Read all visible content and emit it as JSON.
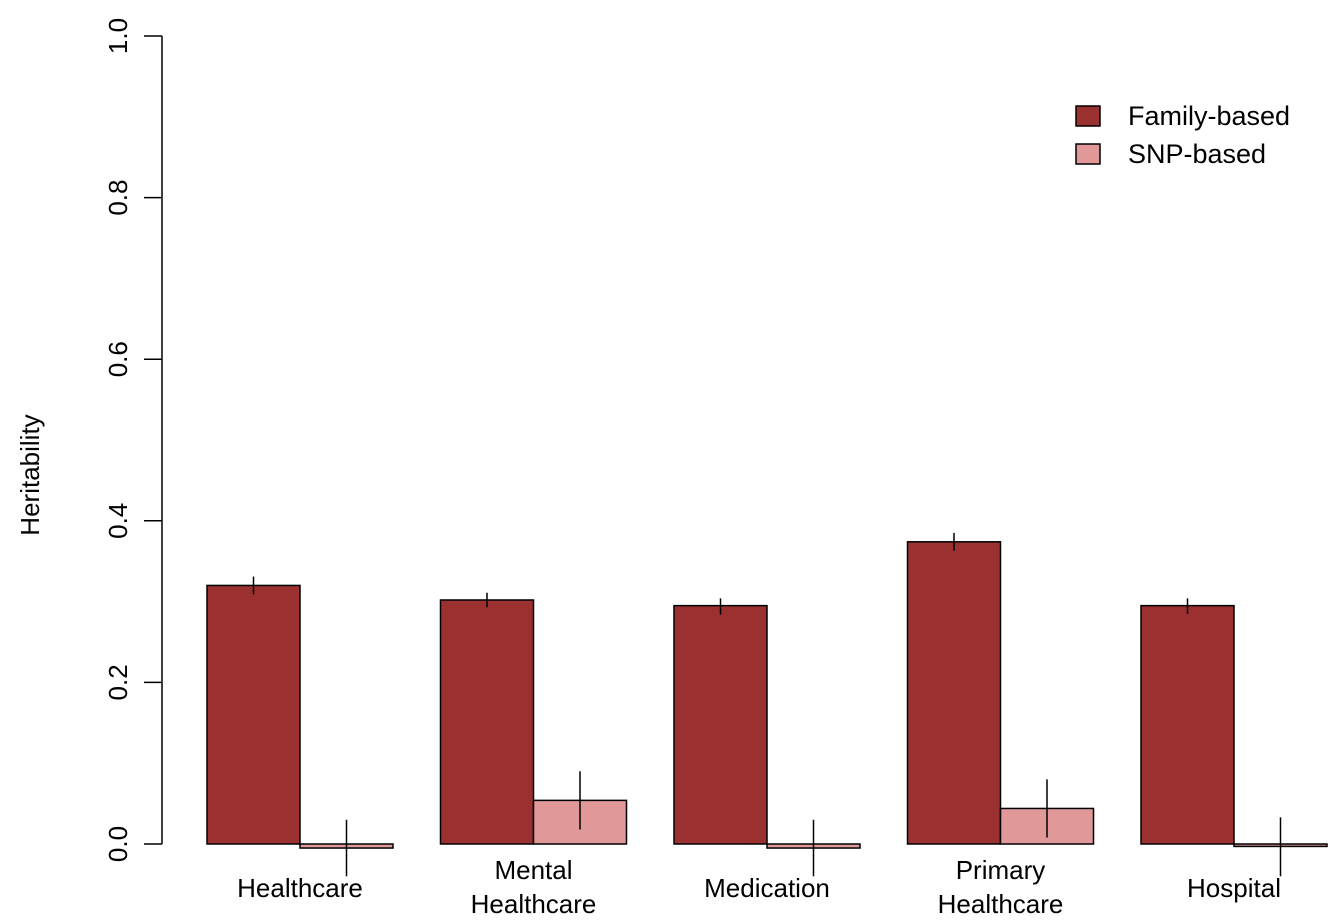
{
  "chart_data": {
    "type": "bar",
    "title": "",
    "xlabel": "",
    "ylabel": "Heritability",
    "ylim": [
      0,
      1
    ],
    "yticks": [
      "0.0",
      "0.2",
      "0.4",
      "0.6",
      "0.8",
      "1.0"
    ],
    "categories": [
      [
        "Healthcare"
      ],
      [
        "Mental",
        "Healthcare"
      ],
      [
        "Medication"
      ],
      [
        "Primary",
        "Healthcare"
      ],
      [
        "Hospital"
      ]
    ],
    "series": [
      {
        "name": "Family-based",
        "color": "#9b3030",
        "values": [
          0.32,
          0.302,
          0.295,
          0.374,
          0.295
        ],
        "error_low": [
          0.309,
          0.293,
          0.284,
          0.363,
          0.285
        ],
        "error_high": [
          0.331,
          0.311,
          0.304,
          0.385,
          0.304
        ]
      },
      {
        "name": "SNP-based",
        "color": "#e09898",
        "values": [
          -0.005,
          0.054,
          -0.005,
          0.044,
          -0.003
        ],
        "error_low": [
          -0.04,
          0.018,
          -0.04,
          0.008,
          -0.04
        ],
        "error_high": [
          0.03,
          0.09,
          0.03,
          0.08,
          0.033
        ]
      }
    ],
    "legend": "top-right",
    "grid": false
  }
}
